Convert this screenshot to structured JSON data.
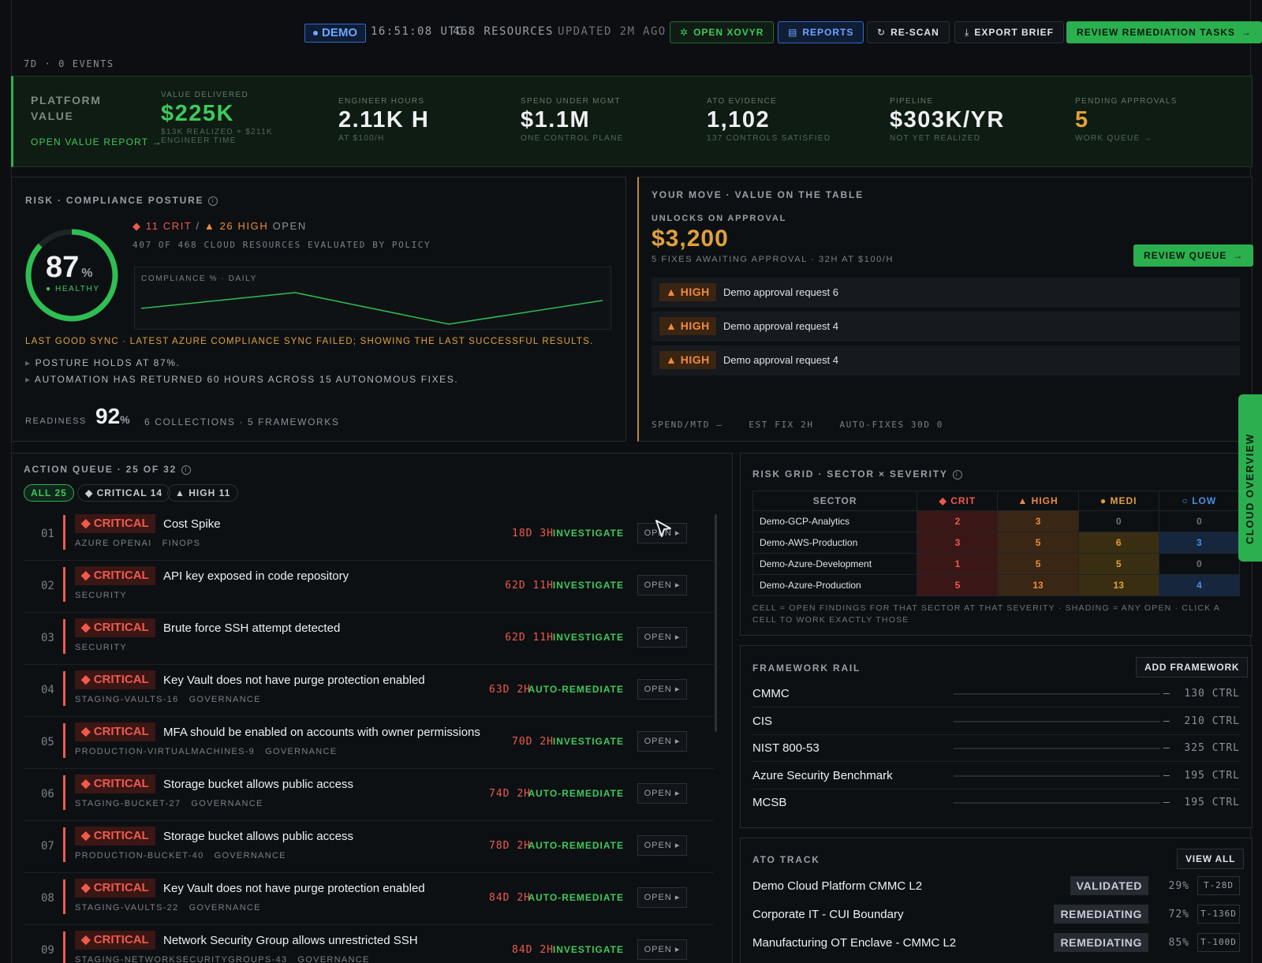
{
  "topbar": {
    "demo": "DEMO",
    "time": "16:51:08 UTC",
    "resources": "468 RESOURCES",
    "updated": "UPDATED 2M AGO",
    "open_xovyr": "OPEN XOVYR",
    "reports": "REPORTS",
    "rescan": "RE-SCAN",
    "export": "EXPORT BRIEF",
    "review_tasks": "REVIEW REMEDIATION TASKS"
  },
  "events": "7D · 0 EVENTS",
  "value": {
    "title_line1": "PLATFORM",
    "title_line2": "VALUE",
    "link": "OPEN VALUE REPORT",
    "kpis": [
      {
        "label": "VALUE DELIVERED",
        "value": "$225K",
        "sub1": "$13K REALIZED + $211K",
        "sub2": "ENGINEER TIME"
      },
      {
        "label": "ENGINEER HOURS",
        "value": "2.11K H",
        "sub1": "AT $100/H"
      },
      {
        "label": "SPEND UNDER MGMT",
        "value": "$1.1M",
        "sub1": "ONE CONTROL PLANE"
      },
      {
        "label": "ATO EVIDENCE",
        "value": "1,102",
        "sub1": "137 CONTROLS SATISFIED"
      },
      {
        "label": "PIPELINE",
        "value": "$303K/YR",
        "sub1": "NOT YET REALIZED"
      },
      {
        "label": "PENDING APPROVALS",
        "value": "5",
        "sub1": "WORK QUEUE →"
      }
    ]
  },
  "risk": {
    "title": "RISK · COMPLIANCE POSTURE",
    "score": "87",
    "score_pct": 0.87,
    "score_unit": "%",
    "health": "HEALTHY",
    "crit": "11 CRIT",
    "sep": "/",
    "high": "26 HIGH",
    "open": "OPEN",
    "evaluated": "407 OF 468 CLOUD RESOURCES EVALUATED BY POLICY",
    "chart_title": "COMPLIANCE % · DAILY",
    "warning": "LAST GOOD SYNC · LATEST AZURE COMPLIANCE SYNC FAILED; SHOWING THE LAST SUCCESSFUL RESULTS.",
    "bullets": [
      "POSTURE HOLDS AT 87%.",
      "AUTOMATION HAS RETURNED 60 HOURS ACROSS 15 AUTONOMOUS FIXES."
    ],
    "readiness_label": "READINESS",
    "readiness": "92",
    "readiness_unit": "%",
    "readiness_meta": "6 COLLECTIONS · 5 FRAMEWORKS"
  },
  "move": {
    "title": "YOUR MOVE · VALUE ON THE TABLE",
    "unlocks": "UNLOCKS ON APPROVAL",
    "amount": "$3,200",
    "sub": "5 FIXES AWAITING APPROVAL · 32H AT $100/H",
    "review": "REVIEW QUEUE",
    "requests": [
      {
        "sev": "HIGH",
        "title": "Demo approval request 6"
      },
      {
        "sev": "HIGH",
        "title": "Demo approval request 4"
      },
      {
        "sev": "HIGH",
        "title": "Demo approval request 4"
      }
    ],
    "footer": "SPEND/MTD —    EST FIX 2H    AUTO-FIXES 30D 0"
  },
  "queue": {
    "title": "ACTION QUEUE · 25 OF 32",
    "filters": {
      "all": "ALL 25",
      "critical": "CRITICAL 14",
      "high": "HIGH 11"
    },
    "open_label": "OPEN ▸",
    "rows": [
      {
        "num": "01",
        "sev": "CRITICAL",
        "title": "Cost Spike",
        "src": "AZURE OPENAI   FINOPS",
        "age": "18D 3H",
        "action": "INVESTIGATE"
      },
      {
        "num": "02",
        "sev": "CRITICAL",
        "title": "API key exposed in code repository",
        "src": "SECURITY",
        "age": "62D 11H",
        "action": "INVESTIGATE"
      },
      {
        "num": "03",
        "sev": "CRITICAL",
        "title": "Brute force SSH attempt detected",
        "src": "SECURITY",
        "age": "62D 11H",
        "action": "INVESTIGATE"
      },
      {
        "num": "04",
        "sev": "CRITICAL",
        "title": "Key Vault does not have purge protection enabled",
        "src": "STAGING-VAULTS-16   GOVERNANCE",
        "age": "63D 2H",
        "action": "AUTO-REMEDIATE"
      },
      {
        "num": "05",
        "sev": "CRITICAL",
        "title": "MFA should be enabled on accounts with owner permissions",
        "src": "PRODUCTION-VIRTUALMACHINES-9   GOVERNANCE",
        "age": "70D 2H",
        "action": "INVESTIGATE"
      },
      {
        "num": "06",
        "sev": "CRITICAL",
        "title": "Storage bucket allows public access",
        "src": "STAGING-BUCKET-27   GOVERNANCE",
        "age": "74D 2H",
        "action": "AUTO-REMEDIATE"
      },
      {
        "num": "07",
        "sev": "CRITICAL",
        "title": "Storage bucket allows public access",
        "src": "PRODUCTION-BUCKET-40   GOVERNANCE",
        "age": "78D 2H",
        "action": "AUTO-REMEDIATE"
      },
      {
        "num": "08",
        "sev": "CRITICAL",
        "title": "Key Vault does not have purge protection enabled",
        "src": "STAGING-VAULTS-22   GOVERNANCE",
        "age": "84D 2H",
        "action": "AUTO-REMEDIATE"
      },
      {
        "num": "09",
        "sev": "CRITICAL",
        "title": "Network Security Group allows unrestricted SSH",
        "src": "STAGING-NETWORKSECURITYGROUPS-43   GOVERNANCE",
        "age": "84D 2H",
        "action": "INVESTIGATE"
      }
    ]
  },
  "grid": {
    "title": "RISK GRID · SECTOR × SEVERITY",
    "headers": [
      "SECTOR",
      "CRIT",
      "HIGH",
      "MEDI",
      "LOW"
    ],
    "rows": [
      {
        "sector": "Demo-GCP-Analytics",
        "crit": "2",
        "high": "3",
        "medi": "0",
        "low": "0"
      },
      {
        "sector": "Demo-AWS-Production",
        "crit": "3",
        "high": "5",
        "medi": "6",
        "low": "3"
      },
      {
        "sector": "Demo-Azure-Development",
        "crit": "1",
        "high": "5",
        "medi": "5",
        "low": "0"
      },
      {
        "sector": "Demo-Azure-Production",
        "crit": "5",
        "high": "13",
        "medi": "13",
        "low": "4"
      }
    ],
    "note": "CELL = OPEN FINDINGS FOR THAT SECTOR AT THAT SEVERITY · SHADING = ANY OPEN · CLICK A CELL TO WORK EXACTLY THOSE"
  },
  "frameworks": {
    "title": "FRAMEWORK RAIL",
    "add": "ADD FRAMEWORK",
    "items": [
      {
        "name": "CMMC",
        "ctrl": "—  130 CTRL"
      },
      {
        "name": "CIS",
        "ctrl": "—  210 CTRL"
      },
      {
        "name": "NIST 800-53",
        "ctrl": "—  325 CTRL"
      },
      {
        "name": "Azure Security Benchmark",
        "ctrl": "—  195 CTRL"
      },
      {
        "name": "MCSB",
        "ctrl": "—  195 CTRL"
      }
    ]
  },
  "ato": {
    "title": "ATO TRACK",
    "view_all": "VIEW ALL",
    "items": [
      {
        "name": "Demo Cloud Platform CMMC L2",
        "status": "VALIDATED",
        "pct": "29%",
        "tag": "T-28D"
      },
      {
        "name": "Corporate IT - CUI Boundary",
        "status": "REMEDIATING",
        "pct": "72%",
        "tag": "T-136D"
      },
      {
        "name": "Manufacturing OT Enclave - CMMC L2",
        "status": "REMEDIATING",
        "pct": "85%",
        "tag": "T-100D"
      }
    ]
  },
  "side_tab": "CLOUD OVERVIEW",
  "colors": {
    "accent_green": "#2bb04f",
    "critical": "#ef5a4c",
    "high": "#f08a3c",
    "medium": "#e0a13a",
    "low": "#4a8fe0"
  }
}
